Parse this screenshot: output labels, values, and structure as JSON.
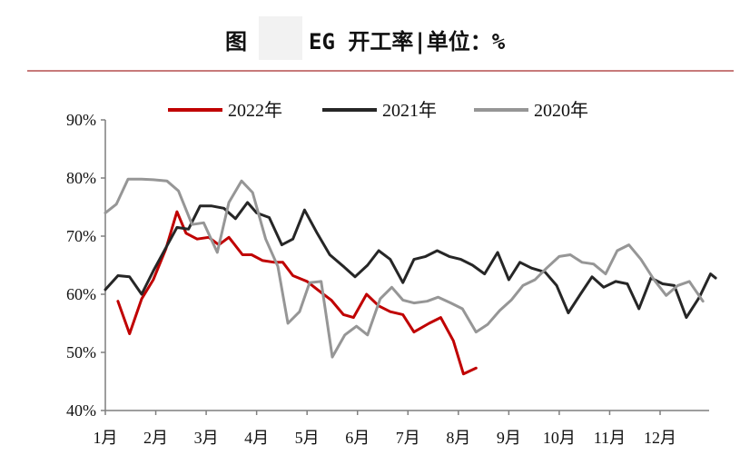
{
  "header": {
    "prefix": "图",
    "title": "EG 开工率|单位：%"
  },
  "chart_data": {
    "type": "line",
    "ylim": [
      40,
      90
    ],
    "yticks": [
      40,
      50,
      60,
      70,
      80,
      90
    ],
    "ytick_labels": [
      "40%",
      "50%",
      "60%",
      "70%",
      "80%",
      "90%"
    ],
    "xlim": [
      1,
      13.1
    ],
    "xticks": [
      1,
      2,
      3,
      4,
      5,
      6,
      7,
      8,
      9,
      10,
      11,
      12
    ],
    "xtick_labels": [
      "1月",
      "2月",
      "3月",
      "4月",
      "5月",
      "6月",
      "7月",
      "8月",
      "9月",
      "10月",
      "11月",
      "12月"
    ],
    "legend_position": "top",
    "grid": false,
    "series": [
      {
        "name": "2022年",
        "color": "#c00000",
        "x": [
          1.25,
          1.48,
          1.72,
          1.95,
          2.2,
          2.42,
          2.6,
          2.82,
          3.05,
          3.25,
          3.45,
          3.72,
          3.9,
          4.12,
          4.35,
          4.52,
          4.72,
          5.0,
          5.25,
          5.48,
          5.72,
          5.92,
          6.18,
          6.42,
          6.65,
          6.9,
          7.12,
          7.42,
          7.65,
          7.9,
          8.1,
          8.35
        ],
        "y": [
          58.8,
          53.2,
          59.2,
          62.5,
          67.8,
          74.2,
          70.5,
          69.5,
          69.8,
          68.5,
          69.8,
          66.8,
          66.8,
          65.8,
          65.5,
          65.5,
          63.2,
          62.2,
          60.5,
          59.0,
          56.5,
          56.0,
          60.0,
          58.0,
          57.0,
          56.5,
          53.5,
          55.0,
          56.0,
          52.0,
          46.3,
          47.3
        ]
      },
      {
        "name": "2021年",
        "color": "#262626",
        "x": [
          1.0,
          1.25,
          1.48,
          1.72,
          1.95,
          2.2,
          2.42,
          2.65,
          2.88,
          3.1,
          3.35,
          3.58,
          3.82,
          4.0,
          4.25,
          4.5,
          4.72,
          4.95,
          5.2,
          5.45,
          5.72,
          5.95,
          6.2,
          6.42,
          6.65,
          6.9,
          7.12,
          7.35,
          7.58,
          7.82,
          8.05,
          8.28,
          8.52,
          8.78,
          9.0,
          9.22,
          9.45,
          9.72,
          9.95,
          10.18,
          10.42,
          10.65,
          10.88,
          11.12,
          11.35,
          11.58,
          11.82,
          12.05,
          12.28,
          12.52,
          12.78,
          13.0,
          13.1
        ],
        "y": [
          60.8,
          63.2,
          63.0,
          60.0,
          64.0,
          68.0,
          71.5,
          71.2,
          75.2,
          75.2,
          74.8,
          73.0,
          75.8,
          74.0,
          73.2,
          68.5,
          69.5,
          74.5,
          70.5,
          66.8,
          64.8,
          63.0,
          65.0,
          67.5,
          66.0,
          62.0,
          66.0,
          66.5,
          67.5,
          66.5,
          66.0,
          65.0,
          63.5,
          67.2,
          62.5,
          65.5,
          64.5,
          63.8,
          61.5,
          56.8,
          60.0,
          63.0,
          61.2,
          62.2,
          61.8,
          57.5,
          62.8,
          61.8,
          61.5,
          56.0,
          59.5,
          63.5,
          62.8
        ]
      },
      {
        "name": "2020年",
        "color": "#969696",
        "x": [
          1.0,
          1.22,
          1.45,
          1.72,
          1.95,
          2.22,
          2.45,
          2.72,
          2.95,
          3.22,
          3.45,
          3.7,
          3.92,
          4.18,
          4.42,
          4.62,
          4.85,
          5.05,
          5.28,
          5.5,
          5.75,
          5.98,
          6.2,
          6.45,
          6.68,
          6.9,
          7.12,
          7.38,
          7.6,
          7.85,
          8.08,
          8.35,
          8.58,
          8.82,
          9.05,
          9.28,
          9.52,
          9.75,
          10.0,
          10.22,
          10.45,
          10.68,
          10.92,
          11.15,
          11.38,
          11.62,
          11.88,
          12.12,
          12.35,
          12.58,
          12.85
        ],
        "y": [
          74.0,
          75.5,
          79.8,
          79.8,
          79.7,
          79.5,
          77.8,
          72.0,
          72.3,
          67.2,
          75.8,
          79.5,
          77.5,
          69.5,
          64.8,
          55.0,
          57.0,
          62.0,
          62.2,
          49.2,
          53.0,
          54.5,
          53.0,
          59.2,
          61.2,
          59.0,
          58.5,
          58.8,
          59.5,
          58.5,
          57.5,
          53.5,
          54.8,
          57.2,
          59.0,
          61.5,
          62.5,
          64.5,
          66.5,
          66.8,
          65.5,
          65.2,
          63.5,
          67.5,
          68.5,
          66.0,
          62.5,
          59.8,
          61.5,
          62.2,
          58.8
        ]
      }
    ]
  }
}
